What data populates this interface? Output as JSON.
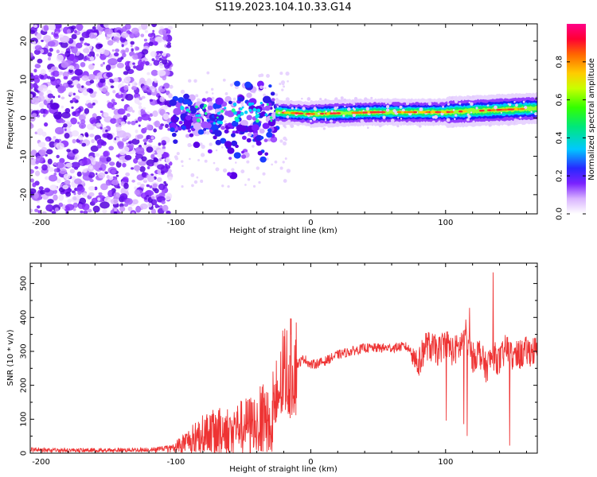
{
  "title": "S119.2023.104.10.33.G14",
  "chart_data": [
    {
      "type": "heatmap",
      "title": "S119.2023.104.10.33.G14",
      "xlabel": "Height of straight line (km)",
      "ylabel": "Frequency (Hz)",
      "xlim": [
        -208,
        168
      ],
      "ylim": [
        -25,
        24.5
      ],
      "xticks": [
        -200,
        -100,
        0,
        100
      ],
      "yticks": [
        -20,
        -10,
        0,
        10,
        20
      ],
      "colorbar": {
        "label": "Normalized spectral amplitude",
        "range": [
          0,
          1
        ],
        "ticks": [
          0.0,
          0.2,
          0.4,
          0.6,
          0.8
        ]
      },
      "signal_trace": {
        "description": "broadband noise below -105 km, scattered blobs from -105 to -25 km, narrow band near 2 Hz above -25 km",
        "band_center_hz": [
          {
            "x": -100,
            "y": 1.0
          },
          {
            "x": -50,
            "y": 1.5
          },
          {
            "x": -25,
            "y": 1.5
          },
          {
            "x": 0,
            "y": 1.0
          },
          {
            "x": 50,
            "y": 1.5
          },
          {
            "x": 100,
            "y": 1.5
          },
          {
            "x": 168,
            "y": 2.5
          }
        ]
      }
    },
    {
      "type": "line",
      "xlabel": "Height of straight line (km)",
      "ylabel": "SNR (10 * v/v)",
      "xlim": [
        -208,
        168
      ],
      "ylim": [
        0,
        560
      ],
      "xticks": [
        -200,
        -100,
        0,
        100
      ],
      "yticks": [
        0,
        100,
        200,
        300,
        400,
        500
      ],
      "color": "#ee3333",
      "series": [
        {
          "name": "SNR",
          "x": [
            -208,
            -180,
            -150,
            -120,
            -100,
            -90,
            -80,
            -70,
            -60,
            -50,
            -40,
            -30,
            -25,
            -20,
            -15,
            -10,
            -5,
            0,
            10,
            20,
            30,
            40,
            50,
            60,
            70,
            75,
            80,
            85,
            90,
            95,
            100,
            105,
            110,
            115,
            120,
            125,
            130,
            135,
            140,
            145,
            150,
            155,
            160,
            168
          ],
          "y": [
            10,
            9,
            9,
            10,
            20,
            40,
            60,
            70,
            75,
            85,
            95,
            130,
            160,
            230,
            250,
            260,
            280,
            260,
            270,
            290,
            300,
            310,
            310,
            310,
            315,
            300,
            260,
            320,
            310,
            300,
            330,
            300,
            310,
            350,
            280,
            300,
            250,
            290,
            270,
            310,
            280,
            290,
            300,
            300
          ]
        }
      ]
    }
  ]
}
